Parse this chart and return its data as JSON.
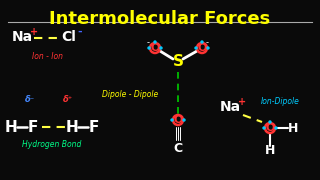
{
  "title": "Intermolecular Forces",
  "title_color": "#FFFF00",
  "title_fontsize": 13,
  "bg_color": "#0a0a0a",
  "line_color": "#AAAAAA",
  "white": "#FFFFFF",
  "red": "#FF3333",
  "blue": "#4466FF",
  "cyan": "#00CCFF",
  "yellow": "#FFFF44",
  "green": "#00FF88",
  "S_color": "#FFFF00",
  "O_color": "#FF3333",
  "ion_ion_label": "Ion - Ion",
  "ion_ion_color": "#FF3333",
  "dipole_label": "Dipole - Dipole",
  "dipole_color": "#FFFF00",
  "hbond_label": "Hydrogen Bond",
  "hbond_color": "#00FF88",
  "iondipole_label": "Ion-Dipole",
  "iondipole_color": "#00CCFF",
  "delta_minus_color": "#4488FF",
  "delta_plus_color": "#FF3333"
}
